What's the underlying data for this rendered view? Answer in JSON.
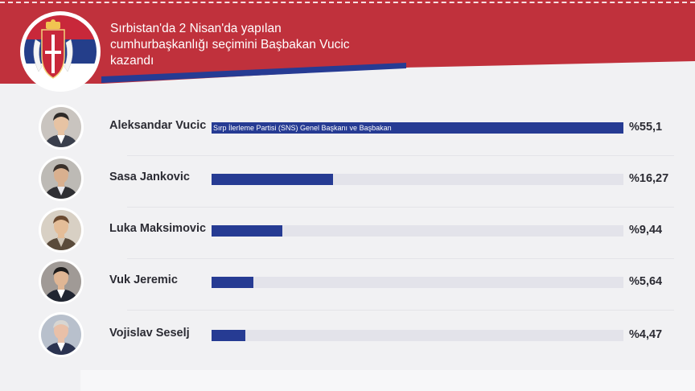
{
  "header": {
    "title": "Sırbistan'da 2 Nisan'da yapılan cumhurbaşkanlığı seçimini Başbakan Vucic kazandı",
    "flag_icon": "serbia-flag-icon",
    "colors": {
      "red": "#c0313c",
      "blue": "#263b93"
    }
  },
  "chart_data": {
    "type": "bar",
    "orientation": "horizontal",
    "title": "Sırbistan'da 2 Nisan'da yapılan cumhurbaşkanlığı seçimini Başbakan Vucic kazandı",
    "categories": [
      "Aleksandar Vucic",
      "Sasa Jankovic",
      "Luka Maksimovic",
      "Vuk Jeremic",
      "Vojislav Seselj"
    ],
    "values": [
      55.1,
      16.27,
      9.44,
      5.64,
      4.47
    ],
    "value_labels": [
      "%55,1",
      "%16,27",
      "%9,44",
      "%5,64",
      "%4,47"
    ],
    "annotations": [
      "Sırp İlerleme Partisi (SNS) Genel Başkanı ve Başbakan",
      "",
      "",
      "",
      ""
    ],
    "unit": "%",
    "xlim": [
      0,
      55.1
    ],
    "bar_color": "#263b93",
    "track_color": "#e3e3ea",
    "grid": false,
    "legend": "none"
  }
}
